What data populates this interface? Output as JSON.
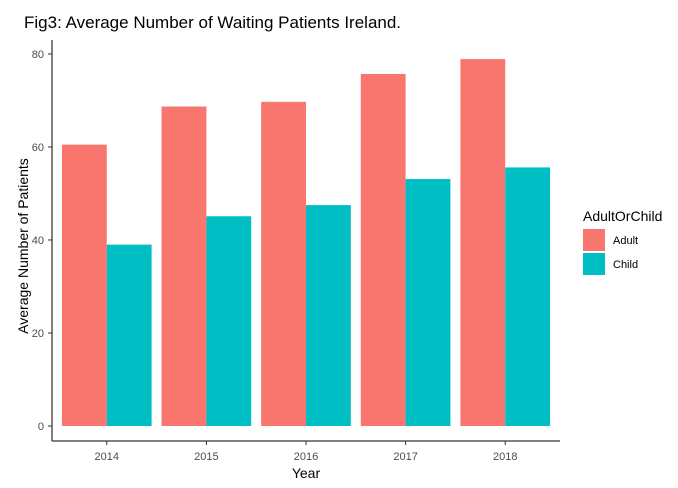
{
  "chart_data": {
    "type": "bar",
    "title": "Fig3: Average Number of Waiting Patients Ireland.",
    "xlabel": "Year",
    "ylabel": "Average Number of Patients",
    "categories": [
      "2014",
      "2015",
      "2016",
      "2017",
      "2018"
    ],
    "series": [
      {
        "name": "Adult",
        "values": [
          60.5,
          68.7,
          69.7,
          75.7,
          78.9
        ],
        "color": "#F8766D"
      },
      {
        "name": "Child",
        "values": [
          39.0,
          45.1,
          47.5,
          53.1,
          55.6
        ],
        "color": "#00BFC4"
      }
    ],
    "ylim": [
      0,
      83
    ],
    "yticks": [
      0,
      20,
      40,
      60,
      80
    ],
    "grid": false,
    "legend": {
      "title": "AdultOrChild",
      "position": "right"
    }
  }
}
